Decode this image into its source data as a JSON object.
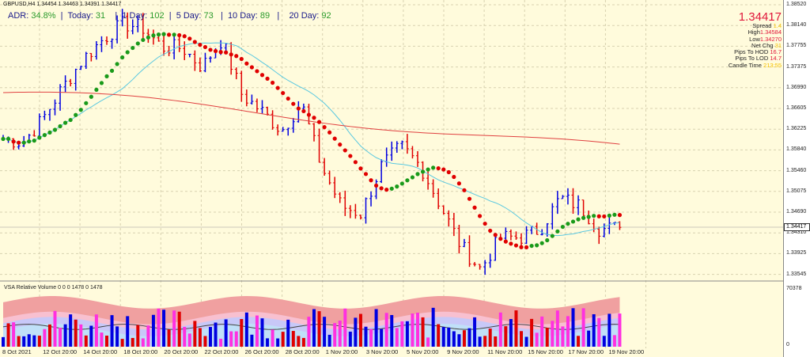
{
  "header": {
    "symbol_line": "GBPUSD,H4  1.34454 1.34463 1.34391 1.34417"
  },
  "adr": {
    "adr_label": "ADR:",
    "adr_value": "34.8%",
    "today_label": "Today:",
    "today_value": "31",
    "day1_label": "1 Day:",
    "day1_value": "102",
    "day5_label": "5 Day:",
    "day5_value": "73",
    "day10_label": "10 Day:",
    "day10_value": "89",
    "day20_label": "20 Day:",
    "day20_value": "92"
  },
  "info": {
    "price": "1.34417",
    "spread_label": "Spread",
    "spread": "1.4",
    "high_label": "High",
    "high": "1.34584",
    "low_label": "Low",
    "low": "1.34270",
    "netchg_label": "Net Chg",
    "netchg": "31",
    "hod_label": "Pips To HOD",
    "hod": "16.7",
    "lod_label": "Pips To LOD",
    "lod": "14.7",
    "candle_label": "Candle Time",
    "candle": "213:55"
  },
  "price_axis": [
    "1.38520",
    "1.38140",
    "1.37755",
    "1.37375",
    "1.36990",
    "1.36605",
    "1.36225",
    "1.35840",
    "1.35460",
    "1.35075",
    "1.34690",
    "1.34310",
    "1.33925",
    "1.33545"
  ],
  "current_price_tag": "1.34417",
  "time_axis": [
    "8 Oct 2021",
    "12 Oct 20:00",
    "14 Oct 20:00",
    "18 Oct 20:00",
    "20 Oct 20:00",
    "22 Oct 20:00",
    "26 Oct 20:00",
    "28 Oct 20:00",
    "1 Nov 20:00",
    "3 Nov 20:00",
    "5 Nov 20:00",
    "9 Nov 20:00",
    "11 Nov 20:00",
    "15 Nov 20:00",
    "17 Nov 20:00",
    "19 Nov 20:00"
  ],
  "volume_panel": {
    "title": "VSA Relative Volume 0 0 0 1478 0 1478",
    "axis_max": "70378",
    "axis_min": "0"
  },
  "colors": {
    "bull": "#0000e0",
    "bear": "#e00000",
    "ma_up": "#1a9a1a",
    "ma_down": "#e00000",
    "sma": "#5ac8e0",
    "long_ma": "#e04040"
  },
  "chart_data": {
    "type": "candlestick",
    "symbol": "GBPUSD",
    "timeframe": "H4",
    "ylim": [
      1.33545,
      1.3852
    ],
    "approx_close_path": [
      1.3605,
      1.3598,
      1.3642,
      1.37,
      1.3751,
      1.3788,
      1.3817,
      1.381,
      1.3773,
      1.3773,
      1.3737,
      1.3788,
      1.3686,
      1.3656,
      1.362,
      1.3671,
      1.3554,
      1.3481,
      1.3467,
      1.3554,
      1.3591,
      1.3554,
      1.3481,
      1.3408,
      1.3365,
      1.3423,
      1.3423,
      1.3438,
      1.3496,
      1.3481,
      1.3438,
      1.34417
    ]
  }
}
